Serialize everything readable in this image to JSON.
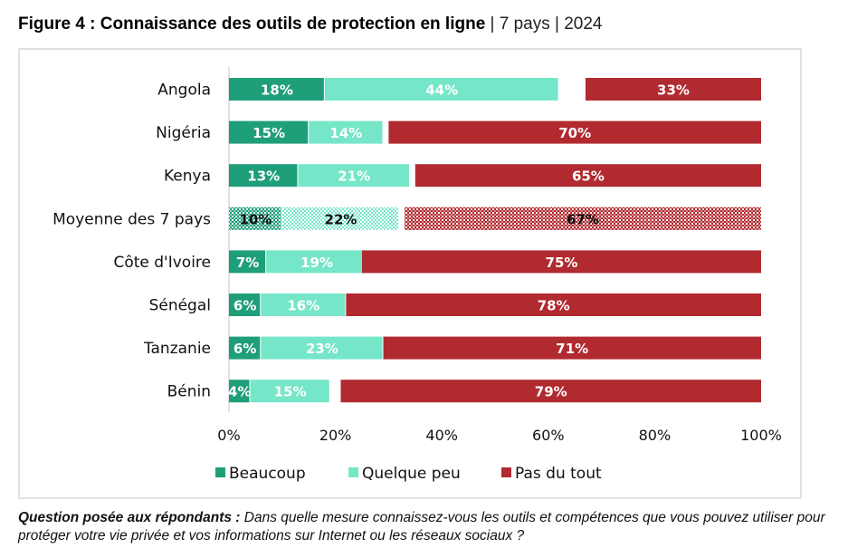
{
  "title": {
    "bold": "Figure 4 : Connaissance des outils de protection en ligne",
    "rest": " | 7 pays | 2024"
  },
  "note": {
    "question_label": "Question posée aux répondants :",
    "question_text": " Dans quelle mesure connaissez-vous les outils et compétences que vous pouvez utiliser pour protéger votre vie privée et vos informations sur Internet ou les réseaux sociaux ?"
  },
  "colors": {
    "beaucoup": "#1f9e7a",
    "quelque_peu": "#76e6c8",
    "pas_du_tout": "#b12a30"
  },
  "chart_data": {
    "type": "bar",
    "orientation": "horizontal",
    "stacked": true,
    "title": "Connaissance des outils de protection en ligne",
    "xlabel": "",
    "ylabel": "",
    "xlim": [
      0,
      100
    ],
    "x_ticks": [
      "0%",
      "20%",
      "40%",
      "60%",
      "80%",
      "100%"
    ],
    "grid": false,
    "legend_position": "bottom",
    "categories": [
      "Angola",
      "Nigéria",
      "Kenya",
      "Moyenne des 7 pays",
      "Côte d'Ivoire",
      "Sénégal",
      "Tanzanie",
      "Bénin"
    ],
    "highlighted_category": "Moyenne des 7 pays",
    "series": [
      {
        "name": "Beaucoup",
        "values": [
          18,
          15,
          13,
          10,
          7,
          6,
          6,
          4
        ],
        "align": "left"
      },
      {
        "name": "Quelque peu",
        "values": [
          44,
          14,
          21,
          22,
          19,
          16,
          23,
          15
        ],
        "align": "left"
      },
      {
        "name": "Pas du tout",
        "values": [
          33,
          70,
          65,
          67,
          75,
          78,
          71,
          79
        ],
        "align": "right"
      }
    ]
  }
}
